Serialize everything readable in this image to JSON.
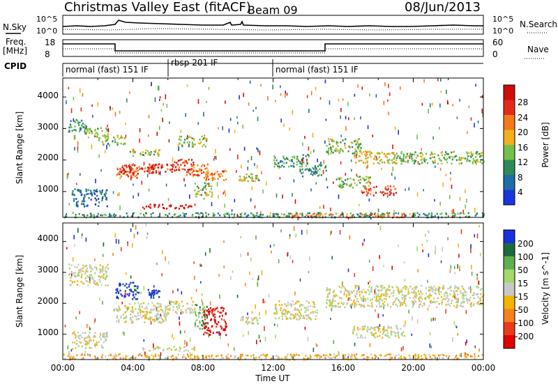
{
  "header": {
    "title": "Christmas Valley East (fitACF)",
    "beam": "Beam 09",
    "date": "08/Jun/2013"
  },
  "summary": {
    "nsky_label": "N.Sky",
    "nsky_ticks": [
      "10^5",
      "10^0"
    ],
    "nsearch_label": "N.Search",
    "nsearch_ticks": [
      "10^5",
      "10^0"
    ],
    "freq_label": "Freq.",
    "freq_unit": "[MHz]",
    "freq_ticks": [
      "18",
      "8"
    ],
    "nave_label": "Nave",
    "nave_ticks": [
      "60",
      "0"
    ],
    "cpid_label": "CPID",
    "cpid_segments": [
      {
        "label": "normal (fast) 151 IF",
        "start_hr": 0.0,
        "end_hr": 6.0
      },
      {
        "label": "rbsp 201 IF",
        "start_hr": 6.0,
        "end_hr": 12.0
      },
      {
        "label": "normal (fast) 151 IF",
        "start_hr": 12.0,
        "end_hr": 24.0
      }
    ]
  },
  "x_axis": {
    "label": "Time UT",
    "ticks": [
      "00:00",
      "04:00",
      "08:00",
      "12:00",
      "16:00",
      "20:00",
      "00:00"
    ]
  },
  "chart_data": [
    {
      "type": "heatmap",
      "name": "power",
      "ylabel": "Slant Range [km]",
      "yticks": [
        "1000",
        "2000",
        "3000",
        "4000"
      ],
      "ylim": [
        180,
        4600
      ],
      "xlim_hr": [
        0,
        24
      ],
      "colorbar": {
        "label": "Power [dB]",
        "ticks": [
          "4",
          "8",
          "12",
          "16",
          "20",
          "24",
          "28"
        ],
        "colors": [
          "#1a35e0",
          "#1c6fa3",
          "#2e8b57",
          "#74c04a",
          "#f1b01c",
          "#f47a1e",
          "#e52a1c",
          "#d10b0b"
        ]
      },
      "regions": [
        {
          "t": [
            0.3,
            1.4
          ],
          "r": [
            2900,
            3300
          ],
          "v": 2
        },
        {
          "t": [
            1.2,
            2.6
          ],
          "r": [
            2700,
            3050
          ],
          "v": 3
        },
        {
          "t": [
            2.2,
            3.6
          ],
          "r": [
            2500,
            2800
          ],
          "v": 3
        },
        {
          "t": [
            3.0,
            4.2
          ],
          "r": [
            1450,
            1800
          ],
          "v": 5
        },
        {
          "t": [
            3.2,
            5.5
          ],
          "r": [
            1550,
            1900
          ],
          "v": 6
        },
        {
          "t": [
            4.8,
            6.5
          ],
          "r": [
            1650,
            1900
          ],
          "v": 6
        },
        {
          "t": [
            6.2,
            7.5
          ],
          "r": [
            1700,
            2050
          ],
          "v": 6
        },
        {
          "t": [
            7.0,
            8.5
          ],
          "r": [
            1500,
            1900
          ],
          "v": 5
        },
        {
          "t": [
            8.0,
            9.3
          ],
          "r": [
            1350,
            1700
          ],
          "v": 5
        },
        {
          "t": [
            7.5,
            8.5
          ],
          "r": [
            800,
            1300
          ],
          "v": 3
        },
        {
          "t": [
            4.5,
            7.5
          ],
          "r": [
            480,
            620
          ],
          "v": 7
        },
        {
          "t": [
            3.8,
            5.5
          ],
          "r": [
            2150,
            2350
          ],
          "v": 3
        },
        {
          "t": [
            6.5,
            8.2
          ],
          "r": [
            2450,
            2800
          ],
          "v": 3
        },
        {
          "t": [
            10.0,
            11.2
          ],
          "r": [
            1350,
            1600
          ],
          "v": 3
        },
        {
          "t": [
            12.0,
            14.0
          ],
          "r": [
            1800,
            2200
          ],
          "v": 2
        },
        {
          "t": [
            13.5,
            15.0
          ],
          "r": [
            1500,
            1900
          ],
          "v": 2
        },
        {
          "t": [
            15.0,
            17.0
          ],
          "r": [
            2200,
            2700
          ],
          "v": 3
        },
        {
          "t": [
            16.5,
            19.0
          ],
          "r": [
            1900,
            2300
          ],
          "v": 4
        },
        {
          "t": [
            19.0,
            24.0
          ],
          "r": [
            1900,
            2300
          ],
          "v": 3
        },
        {
          "t": [
            17.0,
            19.0
          ],
          "r": [
            900,
            1200
          ],
          "v": 6
        },
        {
          "t": [
            15.5,
            17.5
          ],
          "r": [
            1150,
            1500
          ],
          "v": 3
        },
        {
          "t": [
            0.0,
            24.0
          ],
          "r": [
            200,
            350
          ],
          "v": 2
        },
        {
          "t": [
            13.0,
            20.0
          ],
          "r": [
            200,
            330
          ],
          "v": 5
        },
        {
          "t": [
            0.5,
            2.5
          ],
          "r": [
            550,
            1100
          ],
          "v": 1
        }
      ]
    },
    {
      "type": "heatmap",
      "name": "velocity",
      "ylabel": "Slant Range [km]",
      "yticks": [
        "1000",
        "2000",
        "3000",
        "4000"
      ],
      "ylim": [
        180,
        4600
      ],
      "xlim_hr": [
        0,
        24
      ],
      "colorbar": {
        "label": "Velocity [m s^-1]",
        "ticks": [
          "200",
          "100",
          "50",
          "15",
          "-15",
          "-50",
          "-100",
          "-200"
        ],
        "colors": [
          "#1b2ee0",
          "#1e6a3f",
          "#5fae4f",
          "#a5d86a",
          "#c8c8c8",
          "#f4b400",
          "#f5821f",
          "#ea3a1a",
          "#e00000"
        ]
      },
      "regions": [
        {
          "t": [
            0.3,
            2.6
          ],
          "r": [
            2600,
            3300
          ],
          "v": 4
        },
        {
          "t": [
            3.0,
            6.0
          ],
          "r": [
            1400,
            2050
          ],
          "v": 4
        },
        {
          "t": [
            6.0,
            7.5
          ],
          "r": [
            1700,
            2100
          ],
          "v": 4
        },
        {
          "t": [
            3.0,
            4.3
          ],
          "r": [
            2150,
            2700
          ],
          "v": 0
        },
        {
          "t": [
            4.8,
            5.5
          ],
          "r": [
            2200,
            2500
          ],
          "v": 0
        },
        {
          "t": [
            7.5,
            8.2
          ],
          "r": [
            1200,
            2000
          ],
          "v": 2
        },
        {
          "t": [
            8.0,
            9.3
          ],
          "r": [
            1000,
            1900
          ],
          "v": 8
        },
        {
          "t": [
            4.5,
            7.5
          ],
          "r": [
            480,
            620
          ],
          "v": 4
        },
        {
          "t": [
            10.0,
            11.2
          ],
          "r": [
            1350,
            1600
          ],
          "v": 4
        },
        {
          "t": [
            12.0,
            14.5
          ],
          "r": [
            1500,
            2100
          ],
          "v": 4
        },
        {
          "t": [
            15.0,
            24.0
          ],
          "r": [
            1900,
            2600
          ],
          "v": 4
        },
        {
          "t": [
            16.5,
            19.5
          ],
          "r": [
            900,
            1300
          ],
          "v": 4
        },
        {
          "t": [
            0.0,
            24.0
          ],
          "r": [
            200,
            380
          ],
          "v": 5
        },
        {
          "t": [
            0.5,
            2.5
          ],
          "r": [
            550,
            1100
          ],
          "v": 4
        }
      ]
    }
  ]
}
